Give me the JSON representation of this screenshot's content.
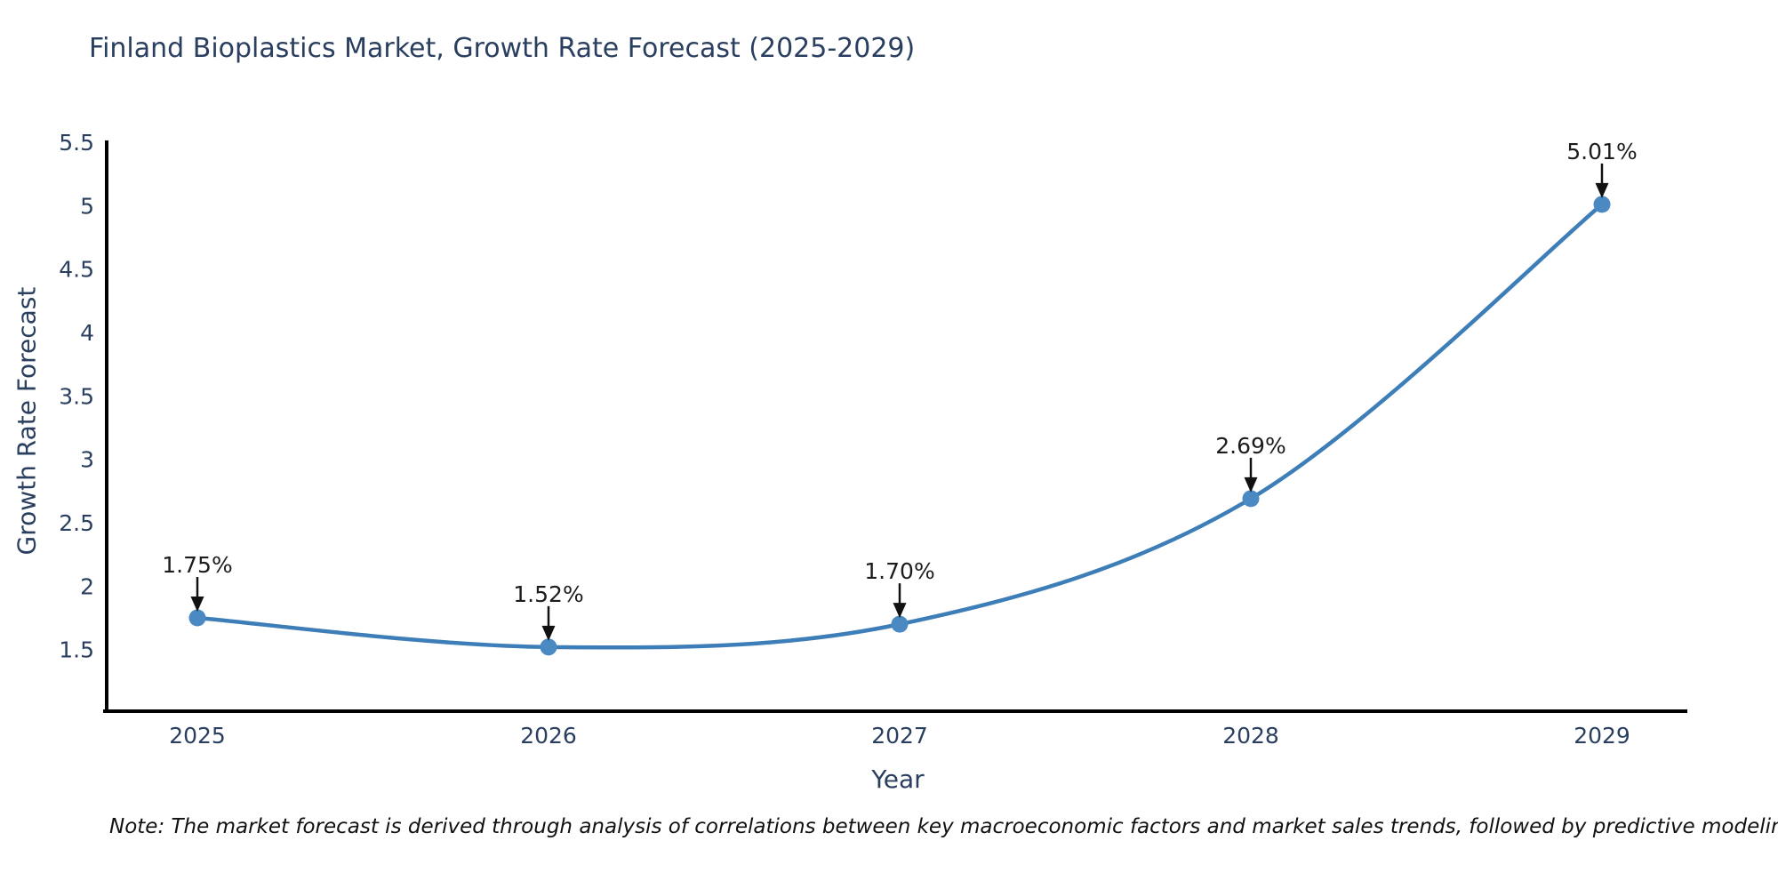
{
  "chart_data": {
    "type": "line",
    "title": "Finland Bioplastics Market, Growth Rate Forecast (2025-2029)",
    "xlabel": "Year",
    "ylabel": "Growth Rate Forecast",
    "x": [
      2025,
      2026,
      2027,
      2028,
      2029
    ],
    "series": [
      {
        "name": "Growth Rate Forecast",
        "values": [
          1.75,
          1.52,
          1.7,
          2.69,
          5.01
        ],
        "point_labels": [
          "1.75%",
          "1.52%",
          "1.70%",
          "2.69%",
          "5.01%"
        ]
      }
    ],
    "x_tick_labels": [
      "2025",
      "2026",
      "2027",
      "2028",
      "2029"
    ],
    "y_ticks": [
      1.5,
      2,
      2.5,
      3,
      3.5,
      4,
      4.5,
      5,
      5.5
    ],
    "ylim": [
      1.0,
      5.5
    ],
    "grid": false,
    "legend": "none",
    "line_style": "spline",
    "colors": {
      "line": "#3d7eb8",
      "marker": "#4a89c1",
      "axis": "#000000",
      "tick_text": "#2a3f5f",
      "annotation_text": "#1c1c1c",
      "annotation_arrow": "#111111"
    }
  },
  "note": {
    "text": "Note: The market forecast is derived through analysis of correlations between key macroeconomic factors and market sales trends, followed by predictive modeling to project future sales"
  }
}
